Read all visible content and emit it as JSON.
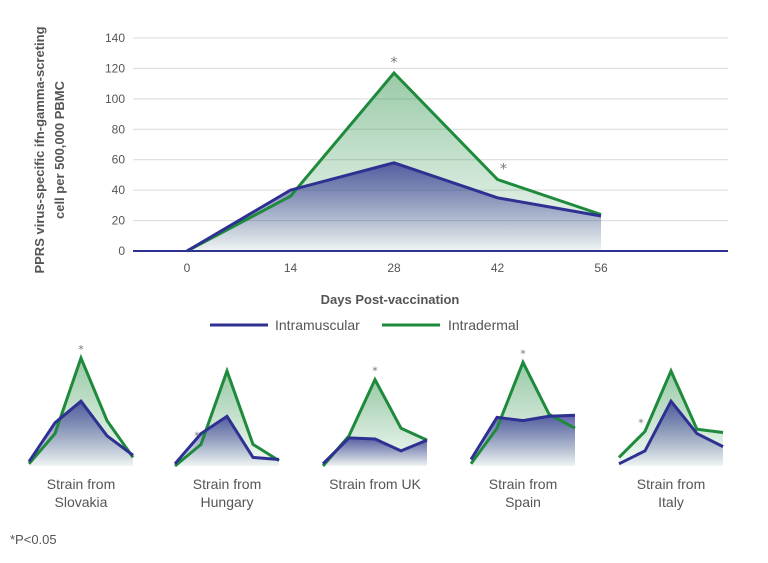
{
  "chart_data": [
    {
      "type": "area",
      "title": "",
      "xlabel": "Days Post-vaccination",
      "ylabel": "PPRS virus-specific ifn-gamma-screting cell per 500,000 PBMC",
      "x": [
        0,
        14,
        28,
        42,
        56
      ],
      "xticks": [
        "0",
        "14",
        "28",
        "42",
        "56"
      ],
      "yticks": [
        "0",
        "20",
        "40",
        "60",
        "80",
        "100",
        "120",
        "140"
      ],
      "ylim": [
        0,
        140
      ],
      "grid": "horizontal",
      "legend_position": "bottom",
      "series": [
        {
          "name": "Intramuscular",
          "values": [
            0,
            40,
            58,
            35,
            23
          ],
          "color": "#2e3192"
        },
        {
          "name": "Intradermal",
          "values": [
            0,
            36,
            117,
            47,
            24
          ],
          "color": "#1e8a3c"
        }
      ],
      "significance_marker": "*",
      "significant_at": [
        28,
        42
      ]
    },
    {
      "type": "area",
      "label_lines": [
        "Strain from",
        "Slovakia"
      ],
      "series": [
        {
          "name": "Intramuscular",
          "values": [
            4,
            40,
            60,
            28,
            10
          ]
        },
        {
          "name": "Intradermal",
          "values": [
            2,
            30,
            100,
            42,
            8
          ]
        }
      ],
      "significant_at_index": [
        2
      ]
    },
    {
      "type": "area",
      "label_lines": [
        "Strain from",
        "Hungary"
      ],
      "series": [
        {
          "name": "Intramuscular",
          "values": [
            2,
            30,
            46,
            8,
            6
          ]
        },
        {
          "name": "Intradermal",
          "values": [
            0,
            20,
            88,
            20,
            5
          ]
        }
      ],
      "significant_at_index": [
        1
      ]
    },
    {
      "type": "area",
      "label_lines": [
        "Strain from UK"
      ],
      "series": [
        {
          "name": "Intramuscular",
          "values": [
            2,
            26,
            25,
            14,
            24
          ]
        },
        {
          "name": "Intradermal",
          "values": [
            0,
            28,
            80,
            35,
            24
          ]
        }
      ],
      "significant_at_index": [
        2
      ]
    },
    {
      "type": "area",
      "label_lines": [
        "Strain from",
        "Spain"
      ],
      "series": [
        {
          "name": "Intramuscular",
          "values": [
            6,
            45,
            42,
            46,
            47
          ]
        },
        {
          "name": "Intradermal",
          "values": [
            2,
            35,
            96,
            48,
            35
          ]
        }
      ],
      "significant_at_index": [
        2
      ]
    },
    {
      "type": "area",
      "label_lines": [
        "Strain from",
        "Italy"
      ],
      "series": [
        {
          "name": "Intramuscular",
          "values": [
            2,
            14,
            60,
            30,
            18
          ]
        },
        {
          "name": "Intradermal",
          "values": [
            8,
            32,
            88,
            34,
            31
          ]
        }
      ],
      "significant_at_index": [
        1
      ]
    }
  ],
  "footnote": "*P<0.05"
}
